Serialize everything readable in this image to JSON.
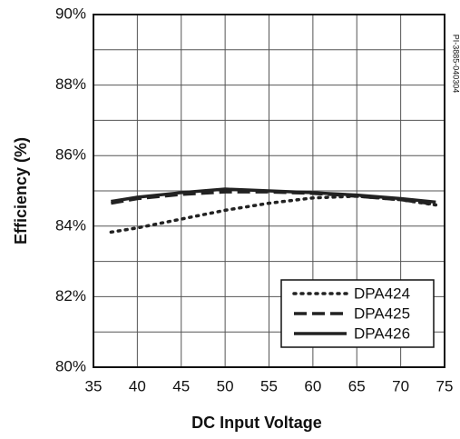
{
  "chart_data": {
    "type": "line",
    "xlabel": "DC Input Voltage",
    "ylabel": "Efficiency (%)",
    "annotation": "PI-3885-040304",
    "x": [
      37,
      40,
      45,
      50,
      55,
      60,
      65,
      70,
      74
    ],
    "series": [
      {
        "name": "DPA424",
        "color": "#222222",
        "dash": "dotted",
        "values": [
          83.83,
          83.95,
          84.2,
          84.45,
          84.65,
          84.8,
          84.85,
          84.75,
          84.6
        ]
      },
      {
        "name": "DPA425",
        "color": "#222222",
        "dash": "dashed",
        "values": [
          84.65,
          84.78,
          84.9,
          84.97,
          84.97,
          84.93,
          84.85,
          84.75,
          84.62
        ]
      },
      {
        "name": "DPA426",
        "color": "#222222",
        "dash": "solid",
        "values": [
          84.7,
          84.82,
          84.95,
          85.05,
          85.0,
          84.95,
          84.88,
          84.78,
          84.68
        ]
      }
    ],
    "xlim": [
      35,
      75
    ],
    "xticks": [
      35,
      40,
      45,
      50,
      55,
      60,
      65,
      70,
      75
    ],
    "ylim": [
      80,
      90
    ],
    "yticks": [
      {
        "value": 80,
        "label": "80%"
      },
      {
        "value": 82,
        "label": "82%"
      },
      {
        "value": 84,
        "label": "84%"
      },
      {
        "value": 86,
        "label": "86%"
      },
      {
        "value": 88,
        "label": "88%"
      },
      {
        "value": 90,
        "label": "90%"
      }
    ],
    "yminor_ticks": [
      81,
      83,
      85,
      87,
      89
    ],
    "grid": true,
    "legend": "lower right"
  }
}
